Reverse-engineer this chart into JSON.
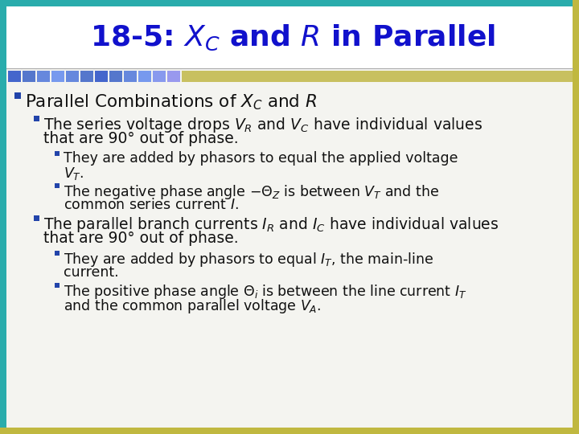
{
  "title_plain": "18-5: ",
  "title_full": "18-5: $X_C$ and $R$ in Parallel",
  "title_color": "#1111CC",
  "bg_color": "#FFFFFF",
  "content_bg": "#F0F0F0",
  "border_teal": "#3BBCBC",
  "border_yellow": "#C8C060",
  "border_left_teal": "#2AA8A8",
  "title_area_color": "#FFFFFF",
  "separator_line_color": "#AAAAAA",
  "blue_squares": [
    "#5577CC",
    "#4466BB",
    "#5588CC",
    "#6699DD",
    "#7799EE",
    "#6688DD",
    "#5577CC",
    "#6688DD",
    "#7799EE",
    "#8899EE",
    "#9999EE",
    "#AAAAEE"
  ],
  "olive_bar_color": "#C8C060",
  "items": [
    {
      "level": 1,
      "lines": [
        "Parallel Combinations of $X_C$ and $R$"
      ]
    },
    {
      "level": 2,
      "lines": [
        "The series voltage drops $V_R$ and $V_C$ have individual values",
        "that are 90° out of phase."
      ]
    },
    {
      "level": 3,
      "lines": [
        "They are added by phasors to equal the applied voltage",
        "$V_T$."
      ]
    },
    {
      "level": 3,
      "lines": [
        "The negative phase angle −Θ$_Z$ is between $V_T$ and the",
        "common series current $I$."
      ]
    },
    {
      "level": 2,
      "lines": [
        "The parallel branch currents $I_R$ and $I_C$ have individual values",
        "that are 90° out of phase."
      ]
    },
    {
      "level": 3,
      "lines": [
        "They are added by phasors to equal $I_T$, the main-line",
        "current."
      ]
    },
    {
      "level": 3,
      "lines": [
        "The positive phase angle Θ$_i$ is between the line current $I_T$",
        "and the common parallel voltage $V_A$."
      ]
    }
  ],
  "level_x": {
    "1": 18,
    "2": 42,
    "3": 68
  },
  "level_fs": {
    "1": 15.5,
    "2": 13.5,
    "3": 12.5
  },
  "bullet_color": "#2244AA",
  "text_color": "#111111",
  "line_height": {
    "1": 22,
    "2": 20,
    "3": 18
  },
  "item_gap": {
    "1": 10,
    "2": 8,
    "3": 6
  }
}
